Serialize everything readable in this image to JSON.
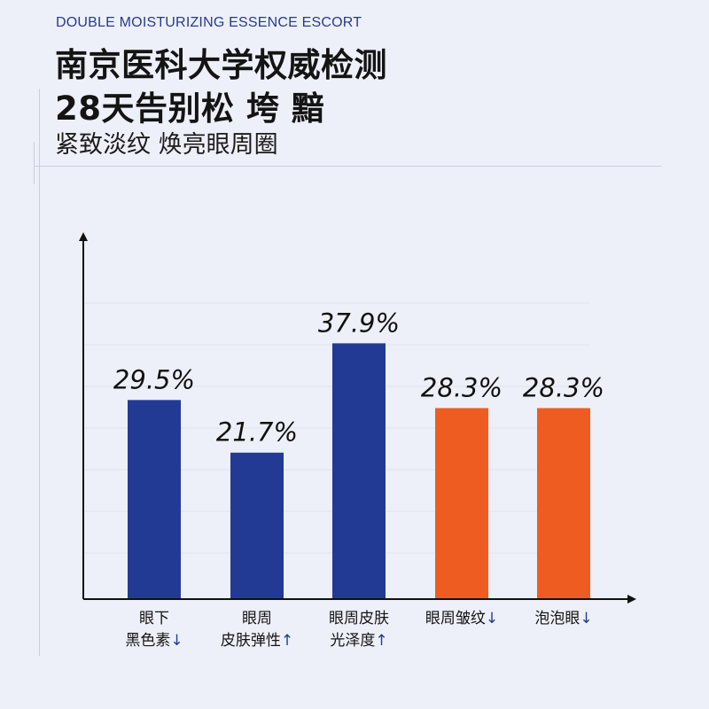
{
  "header": {
    "subtitle_en": "DOUBLE MOISTURIZING ESSENCE ESCORT",
    "headline_line1": "南京医科大学权威检测",
    "headline_line2": "28天告别松 垮 黯",
    "tagline": "紧致淡纹 焕亮眼周圈"
  },
  "colors": {
    "background": "#edf0f8",
    "blue": "#233a95",
    "orange": "#ef5c22",
    "axis": "#111111",
    "grid": "#dfe3ee",
    "arrow_blue": "#233a95"
  },
  "chart_data": {
    "type": "bar",
    "title": "",
    "xlabel": "",
    "ylabel": "",
    "ylim": [
      0,
      52
    ],
    "grid": true,
    "unit": "%",
    "categories": [
      [
        "眼下",
        "黑色素↓"
      ],
      [
        "眼周",
        "皮肤弹性↑"
      ],
      [
        "眼周皮肤",
        "光泽度↑"
      ],
      [
        "眼周皱纹↓"
      ],
      [
        "泡泡眼↓"
      ]
    ],
    "values": [
      29.5,
      21.7,
      37.9,
      28.3,
      28.3
    ],
    "data_labels": [
      "29.5%",
      "21.7%",
      "37.9%",
      "28.3%",
      "28.3%"
    ],
    "bar_colors": [
      "blue",
      "blue",
      "blue",
      "orange",
      "orange"
    ]
  }
}
